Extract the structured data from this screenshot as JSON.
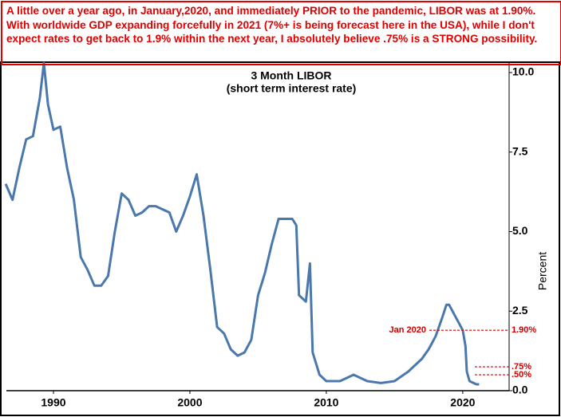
{
  "note_box": {
    "text": "A little over a year ago, in January,2020, and immediately PRIOR to the pandemic, LIBOR was at 1.90%. With worldwide GDP expanding forcefully in 2021 (7%+ is being forecast here in the USA), while I don't expect rates to get back to 1.9% within the next year, I absolutely believe .75% is a STRONG possibility."
  },
  "chart_data": {
    "type": "line",
    "title": "3 Month LIBOR",
    "subtitle": "(short term interest rate)",
    "y_label": "Percent",
    "x": [
      1986.5,
      1987,
      1987.5,
      1988,
      1988.5,
      1989,
      1989.3,
      1989.6,
      1990,
      1990.5,
      1991,
      1991.5,
      1992,
      1992.5,
      1993,
      1993.5,
      1994,
      1994.5,
      1995,
      1995.5,
      1996,
      1996.5,
      1997,
      1997.5,
      1998,
      1998.5,
      1999,
      1999.5,
      2000,
      2000.5,
      2001,
      2001.5,
      2002,
      2002.5,
      2003,
      2003.5,
      2004,
      2004.5,
      2005,
      2005.5,
      2006,
      2006.5,
      2007,
      2007.5,
      2007.8,
      2008,
      2008.5,
      2008.8,
      2009,
      2009.5,
      2010,
      2011,
      2011.5,
      2012,
      2013,
      2014,
      2015,
      2016,
      2016.5,
      2017,
      2017.5,
      2018,
      2018.5,
      2018.8,
      2019,
      2019.5,
      2020,
      2020.2,
      2020.3,
      2020.5,
      2021,
      2021.2
    ],
    "series": [
      {
        "name": "3 Month LIBOR",
        "color": "#4a78ad",
        "values": [
          6.5,
          6.0,
          7.0,
          7.9,
          8.0,
          9.2,
          10.3,
          9.0,
          8.2,
          8.3,
          7.0,
          6.0,
          4.2,
          3.8,
          3.3,
          3.3,
          3.6,
          5.0,
          6.2,
          6.0,
          5.5,
          5.6,
          5.8,
          5.8,
          5.7,
          5.6,
          5.0,
          5.5,
          6.1,
          6.8,
          5.5,
          3.8,
          2.0,
          1.8,
          1.3,
          1.1,
          1.2,
          1.6,
          3.0,
          3.7,
          4.6,
          5.4,
          5.4,
          5.4,
          5.2,
          3.0,
          2.8,
          4.0,
          1.2,
          0.5,
          0.3,
          0.3,
          0.4,
          0.5,
          0.3,
          0.24,
          0.3,
          0.6,
          0.8,
          1.0,
          1.3,
          1.7,
          2.3,
          2.7,
          2.7,
          2.3,
          1.9,
          1.4,
          0.6,
          0.3,
          0.2,
          0.2
        ]
      }
    ],
    "xlim": [
      1986.55,
      2023.4
    ],
    "xticks": [
      1990,
      2000,
      2010,
      2020
    ],
    "ylim": [
      0,
      10.3
    ],
    "yticks": [
      {
        "value": 0,
        "label": "0.0"
      },
      {
        "value": 2.5,
        "label": "2.5"
      },
      {
        "value": 5,
        "label": "5.0"
      },
      {
        "value": 7.5,
        "label": "7.5"
      },
      {
        "value": 10,
        "label": "10.0"
      }
    ],
    "annotations": [
      {
        "text": "Jan 2020",
        "label": "1.90%",
        "value": 1.9
      },
      {
        "label": ".75%",
        "value": 0.75
      },
      {
        "label": ".50%",
        "value": 0.5
      }
    ]
  }
}
